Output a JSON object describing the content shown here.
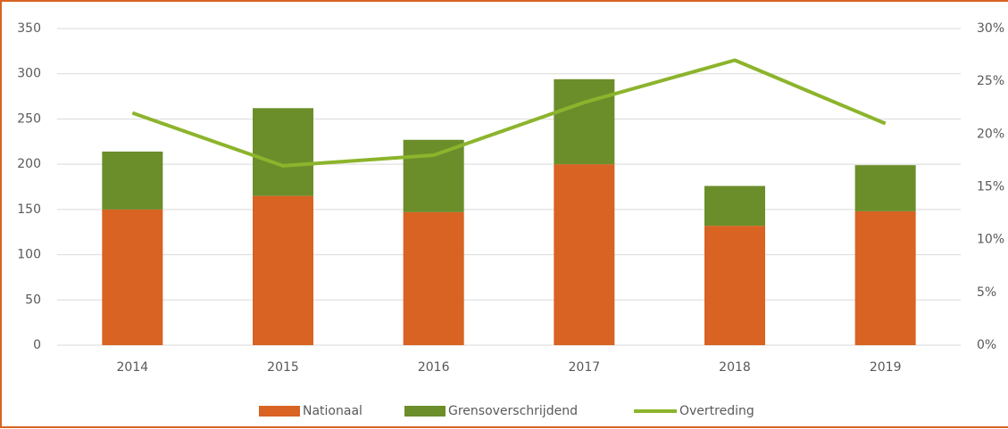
{
  "chart_data": {
    "type": "bar",
    "categories": [
      "2014",
      "2015",
      "2016",
      "2017",
      "2018",
      "2019"
    ],
    "series": [
      {
        "name": "Nationaal",
        "color": "#d86322",
        "values": [
          150,
          165,
          147,
          200,
          132,
          148
        ]
      },
      {
        "name": "Grensoverschrijdend",
        "color": "#6b8e2b",
        "values": [
          64,
          97,
          80,
          94,
          44,
          51
        ]
      },
      {
        "name": "Overtreding",
        "color": "#8cb42c",
        "axis": "y2",
        "type": "line",
        "values": [
          22,
          17,
          18,
          23,
          27,
          21
        ]
      }
    ],
    "ylim": [
      0,
      350
    ],
    "yticks": [
      0,
      50,
      100,
      150,
      200,
      250,
      300,
      350
    ],
    "y2lim": [
      0,
      30
    ],
    "y2ticks": [
      {
        "value": 0,
        "label": "0%"
      },
      {
        "value": 5,
        "label": "5%"
      },
      {
        "value": 10,
        "label": "10%"
      },
      {
        "value": 15,
        "label": "15%"
      },
      {
        "value": 20,
        "label": "20%"
      },
      {
        "value": 25,
        "label": "25%"
      },
      {
        "value": 30,
        "label": "30%"
      }
    ],
    "grid": true,
    "stacked": true,
    "legend": "bottom"
  }
}
